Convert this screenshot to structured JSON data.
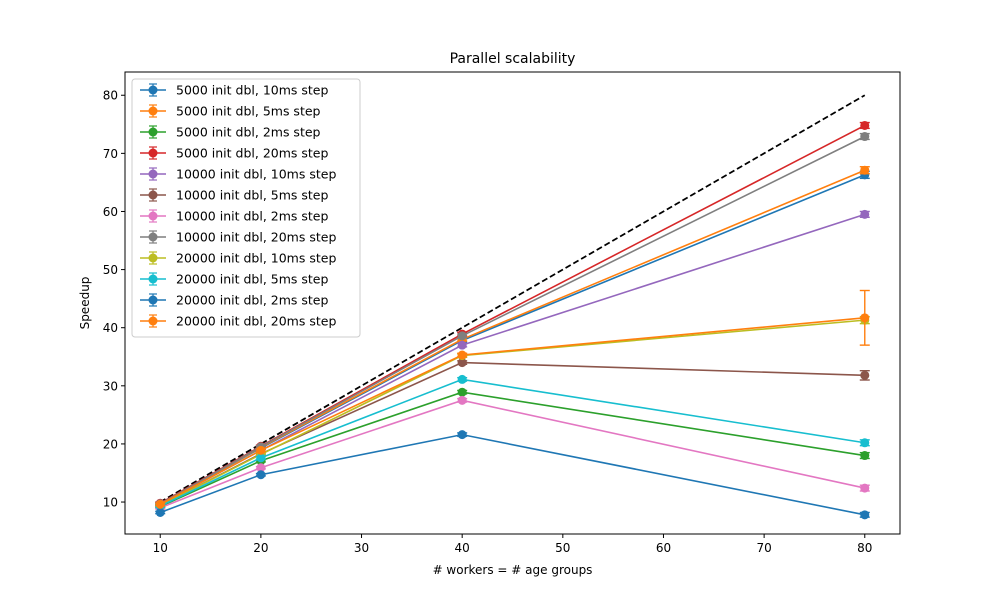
{
  "chart_data": {
    "type": "line",
    "title": "Parallel scalability",
    "xlabel": "# workers = # age groups",
    "ylabel": "Speedup",
    "xlim": [
      6.5,
      83.5
    ],
    "ylim": [
      4.5,
      84
    ],
    "xticks": [
      10,
      20,
      30,
      40,
      50,
      60,
      70,
      80
    ],
    "yticks": [
      10,
      20,
      30,
      40,
      50,
      60,
      70,
      80
    ],
    "x": [
      10,
      20,
      40,
      80
    ],
    "legend_position": "upper-left",
    "grid": false,
    "reference_line": {
      "x": [
        10,
        80
      ],
      "y": [
        10,
        80
      ],
      "color": "#000000",
      "style": "dashed"
    },
    "series": [
      {
        "name": "5000 init dbl, 10ms step",
        "color": "#1f77b4",
        "values": [
          9.7,
          19.3,
          37.8,
          66.3
        ],
        "err": [
          0.2,
          0.2,
          0.3,
          0.6
        ]
      },
      {
        "name": "5000 init dbl, 5ms step",
        "color": "#ff7f0e",
        "values": [
          9.7,
          19.4,
          38.0,
          67.1
        ],
        "err": [
          0.2,
          0.2,
          0.3,
          0.6
        ]
      },
      {
        "name": "5000 init dbl, 2ms step",
        "color": "#2ca02c",
        "values": [
          9.2,
          17.1,
          28.9,
          18.0
        ],
        "err": [
          0.2,
          0.2,
          0.3,
          0.5
        ]
      },
      {
        "name": "5000 init dbl, 20ms step",
        "color": "#d62728",
        "values": [
          9.8,
          19.6,
          38.9,
          74.8
        ],
        "err": [
          0.2,
          0.2,
          0.3,
          0.5
        ]
      },
      {
        "name": "10000 init dbl, 10ms step",
        "color": "#9467bd",
        "values": [
          9.6,
          18.9,
          37.0,
          59.5
        ],
        "err": [
          0.2,
          0.2,
          0.3,
          0.5
        ]
      },
      {
        "name": "10000 init dbl, 5ms step",
        "color": "#8c564b",
        "values": [
          9.4,
          18.3,
          34.0,
          31.8
        ],
        "err": [
          0.2,
          0.2,
          0.3,
          0.8
        ]
      },
      {
        "name": "10000 init dbl, 2ms step",
        "color": "#e377c2",
        "values": [
          9.0,
          15.9,
          27.5,
          12.4
        ],
        "err": [
          0.2,
          0.2,
          0.3,
          0.5
        ]
      },
      {
        "name": "10000 init dbl, 20ms step",
        "color": "#7f7f7f",
        "values": [
          9.7,
          19.5,
          38.6,
          72.9
        ],
        "err": [
          0.2,
          0.2,
          0.3,
          0.5
        ]
      },
      {
        "name": "20000 init dbl, 10ms step",
        "color": "#bcbd22",
        "values": [
          9.4,
          18.2,
          35.2,
          41.3
        ],
        "err": [
          0.2,
          0.2,
          0.3,
          0.6
        ]
      },
      {
        "name": "20000 init dbl, 5ms step",
        "color": "#17becf",
        "values": [
          9.3,
          17.6,
          31.1,
          20.2
        ],
        "err": [
          0.2,
          0.2,
          0.3,
          0.5
        ]
      },
      {
        "name": "20000 init dbl, 2ms step",
        "color": "#1f77b4",
        "values": [
          8.2,
          14.7,
          21.6,
          7.8
        ],
        "err": [
          0.2,
          0.2,
          0.3,
          0.4
        ]
      },
      {
        "name": "20000 init dbl, 20ms step",
        "color": "#ff7f0e",
        "values": [
          9.6,
          18.9,
          35.3,
          41.7
        ],
        "err": [
          0.2,
          0.2,
          0.3,
          4.7
        ]
      }
    ]
  }
}
